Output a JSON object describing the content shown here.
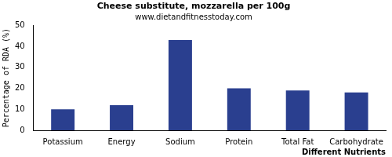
{
  "chart_data": {
    "type": "bar",
    "title": "Cheese substitute, mozzarella per 100g",
    "subtitle": "www.dietandfitnesstoday.com",
    "x_label": "Different Nutrients",
    "y_label": "Percentage of RDA (%)",
    "categories": [
      "Potassium",
      "Energy",
      "Sodium",
      "Protein",
      "Total Fat",
      "Carbohydrate"
    ],
    "values": [
      10,
      12,
      43,
      20,
      19,
      18
    ],
    "color": "#2a3f8f",
    "ylim": [
      0,
      50
    ],
    "yticks": [
      0,
      10,
      20,
      30,
      40,
      50
    ],
    "grid": false
  }
}
